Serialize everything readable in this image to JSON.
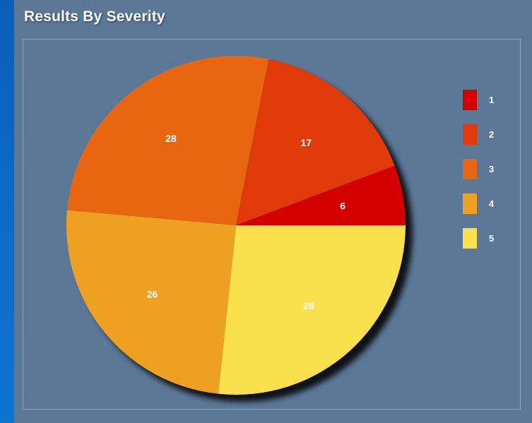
{
  "panel": {
    "title": "Results By Severity"
  },
  "chart_data": {
    "type": "pie",
    "title": "Results By Severity",
    "categories": [
      "1",
      "2",
      "3",
      "4",
      "5"
    ],
    "values": [
      6,
      17,
      28,
      26,
      28
    ],
    "colors": [
      "#d40000",
      "#e03a0a",
      "#e8660f",
      "#eea020",
      "#fbe04e"
    ],
    "legend_position": "right",
    "data_labels": true
  }
}
